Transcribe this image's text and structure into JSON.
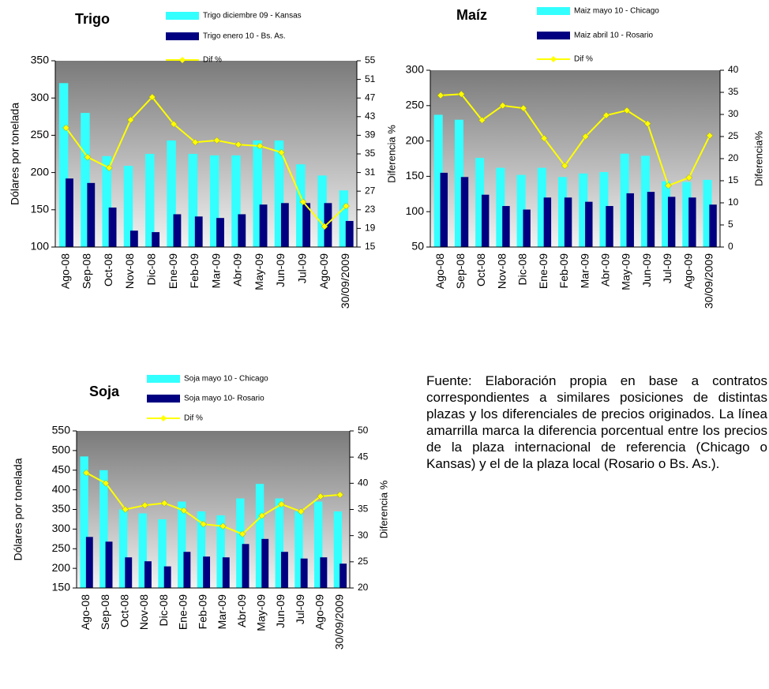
{
  "chart_data": [
    {
      "type": "bar",
      "title": "Trigo",
      "categories": [
        "Ago-08",
        "Sep-08",
        "Oct-08",
        "Nov-08",
        "Dic-08",
        "Ene-09",
        "Feb-09",
        "Mar-09",
        "Abr-09",
        "May-09",
        "Jun-09",
        "Jul-09",
        "Ago-09",
        "30/09/2009"
      ],
      "series": [
        {
          "name": "Trigo diciembre 09 - Kansas",
          "color": "#33ffff",
          "values": [
            320,
            280,
            222,
            209,
            225,
            243,
            225,
            223,
            223,
            243,
            243,
            211,
            196,
            176
          ]
        },
        {
          "name": "Trigo enero 10 - Bs. As.",
          "color": "#000080",
          "values": [
            192,
            186,
            153,
            122,
            120,
            144,
            141,
            139,
            144,
            157,
            159,
            159,
            159,
            135
          ]
        },
        {
          "name": "Dif %",
          "color": "#ffff00",
          "axis": "y2",
          "values": [
            40.6,
            34.3,
            32,
            42.3,
            47.2,
            41.4,
            37.5,
            37.9,
            37,
            36.7,
            35.3,
            24.7,
            19.4,
            23.8
          ]
        }
      ],
      "ylabel": "Dólares por tonelada",
      "y2label": "Diferencia %",
      "ylim": [
        100,
        350
      ],
      "yticks": [
        100,
        150,
        200,
        250,
        300,
        350
      ],
      "y2lim": [
        15,
        55
      ],
      "y2ticks": [
        15,
        19,
        23,
        27,
        31,
        35,
        39,
        43,
        47,
        51,
        55
      ]
    },
    {
      "type": "bar",
      "title": "Maíz",
      "categories": [
        "Ago-08",
        "Sep-08",
        "Oct-08",
        "Nov-08",
        "Dic-08",
        "Ene-09",
        "Feb-09",
        "Mar-09",
        "Abr-09",
        "May-09",
        "Jun-09",
        "Jul-09",
        "Ago-09",
        "30/09/2009"
      ],
      "series": [
        {
          "name": "Maiz mayo 10 - Chicago",
          "color": "#33ffff",
          "values": [
            237,
            230,
            176,
            162,
            152,
            162,
            149,
            154,
            156,
            182,
            179,
            143,
            142,
            145
          ]
        },
        {
          "name": "Maiz abril 10 - Rosario",
          "color": "#000080",
          "values": [
            155,
            149,
            124,
            108,
            103,
            120,
            120,
            114,
            108,
            126,
            128,
            121,
            120,
            110
          ]
        },
        {
          "name": "Dif %",
          "color": "#ffff00",
          "axis": "y2",
          "values": [
            34.3,
            34.6,
            28.7,
            32,
            31.4,
            24.6,
            18.4,
            25,
            29.8,
            30.9,
            27.9,
            13.9,
            15.7,
            25.2
          ]
        }
      ],
      "y2label": "Diferencia%",
      "ylim": [
        50,
        300
      ],
      "yticks": [
        50,
        100,
        150,
        200,
        250,
        300
      ],
      "y2lim": [
        0,
        40
      ],
      "y2ticks": [
        0,
        5,
        10,
        15,
        20,
        25,
        30,
        35,
        40
      ]
    },
    {
      "type": "bar",
      "title": "Soja",
      "categories": [
        "Ago-08",
        "Sep-08",
        "Oct-08",
        "Nov-08",
        "Dic-08",
        "Ene-09",
        "Feb-09",
        "Mar-09",
        "Abr-09",
        "May-09",
        "Jun-09",
        "Jul-09",
        "Ago-09",
        "30/09/2009"
      ],
      "series": [
        {
          "name": "Soja mayo 10 - Chicago",
          "color": "#33ffff",
          "values": [
            485,
            450,
            350,
            340,
            325,
            370,
            345,
            335,
            378,
            415,
            378,
            345,
            370,
            345
          ]
        },
        {
          "name": "Soja mayo 10- Rosario",
          "color": "#000080",
          "values": [
            280,
            268,
            228,
            218,
            205,
            242,
            230,
            228,
            262,
            275,
            242,
            225,
            228,
            212
          ]
        },
        {
          "name": "Dif %",
          "color": "#ffff00",
          "axis": "y2",
          "values": [
            42,
            40,
            35,
            35.8,
            36.2,
            34.8,
            32.2,
            31.8,
            30.3,
            33.8,
            36,
            34.6,
            37.5,
            37.8
          ]
        }
      ],
      "ylabel": "Dólares por tonelada",
      "y2label": "Diferencia %",
      "ylim": [
        150,
        550
      ],
      "yticks": [
        150,
        200,
        250,
        300,
        350,
        400,
        450,
        500,
        550
      ],
      "y2lim": [
        20,
        50
      ],
      "y2ticks": [
        20,
        25,
        30,
        35,
        40,
        45,
        50
      ]
    }
  ],
  "note": "Fuente: Elaboración propia en base a contratos correspondientes a similares posiciones de distintas plazas y los diferenciales de precios originados. La línea amarrilla marca la diferencia porcentual entre los precios de la plaza internacional de referencia (Chicago o Kansas) y el de la plaza local (Rosario o Bs. As.)."
}
